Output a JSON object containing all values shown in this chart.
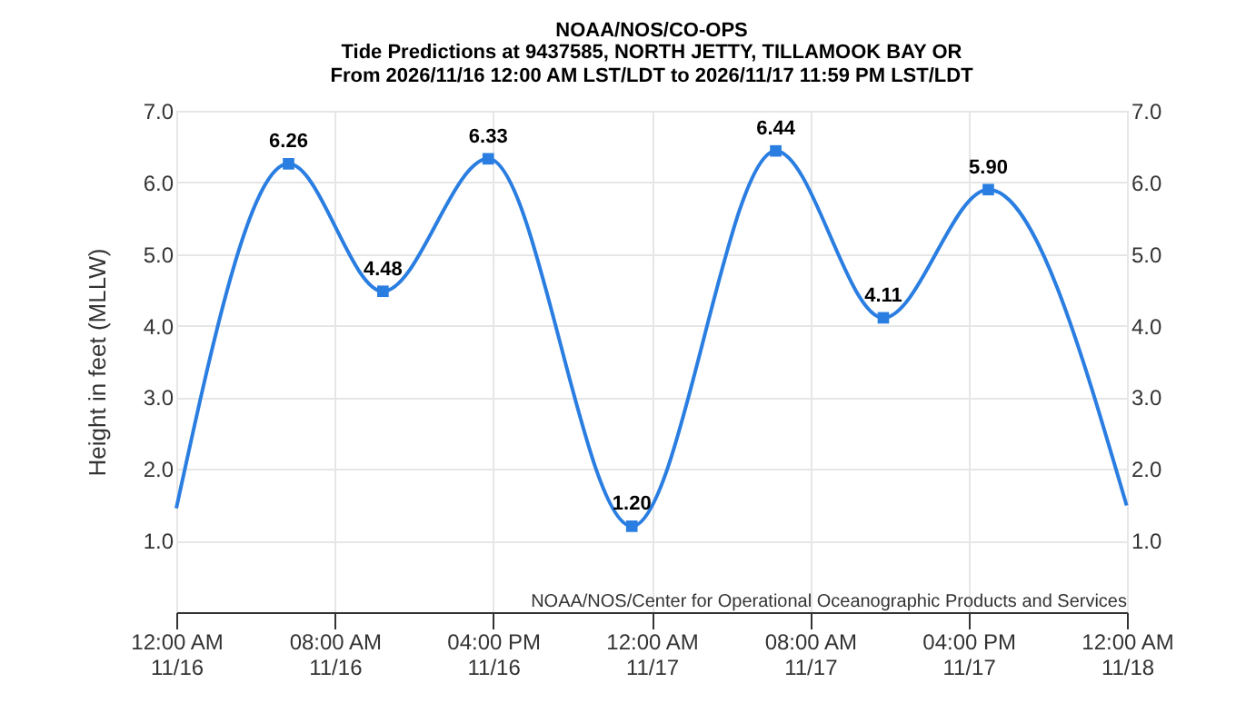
{
  "chart_data": {
    "type": "line",
    "title": "NOAA/NOS/CO-OPS",
    "subtitle": "Tide Predictions at 9437585, NORTH JETTY, TILLAMOOK BAY OR\nFrom 2026/11/16 12:00 AM LST/LDT to 2026/11/17 11:59 PM LST/LDT",
    "ylabel": "Height in feet (MLLW)",
    "series": [
      {
        "color": "#2a7de1",
        "line_style": "solid",
        "x": [
          "2026-11-16T00:00",
          "2026-11-16T05:40",
          "2026-11-16T10:26",
          "2026-11-16T15:45",
          "2026-11-16T23:00",
          "2026-11-17T06:16",
          "2026-11-17T11:42",
          "2026-11-17T17:00",
          "2026-11-17T23:59"
        ],
        "values": [
          1.45,
          6.26,
          4.48,
          6.33,
          1.2,
          6.44,
          4.11,
          5.9,
          1.49
        ]
      },
      {
        "type": "scatter",
        "marker": "square",
        "color": "#2a7de1",
        "x": [
          "2026-11-16T05:40",
          "2026-11-16T10:26",
          "2026-11-16T15:45",
          "2026-11-16T23:00",
          "2026-11-17T06:16",
          "2026-11-17T11:42",
          "2026-11-17T17:00"
        ],
        "values": [
          6.26,
          4.48,
          6.33,
          1.2,
          6.44,
          4.11,
          5.9
        ],
        "value_labels": [
          "6.26",
          "4.48",
          "6.33",
          "1.20",
          "6.44",
          "4.11",
          "5.90"
        ]
      }
    ],
    "xlim": [
      "2026-11-16T00:00",
      "2026-11-18T00:00"
    ],
    "xticks": [
      {
        "value": "2026-11-16T00:00",
        "label": "12:00 AM\n11/16"
      },
      {
        "value": "2026-11-16T08:00",
        "label": "08:00 AM\n11/16"
      },
      {
        "value": "2026-11-16T16:00",
        "label": "04:00 PM\n11/16"
      },
      {
        "value": "2026-11-17T00:00",
        "label": "12:00 AM\n11/17"
      },
      {
        "value": "2026-11-17T08:00",
        "label": "08:00 AM\n11/17"
      },
      {
        "value": "2026-11-17T16:00",
        "label": "04:00 PM\n11/17"
      },
      {
        "value": "2026-11-18T00:00",
        "label": "12:00 AM\n11/18"
      }
    ],
    "ylim": [
      0,
      7
    ],
    "yticks": [
      {
        "value": 1,
        "label": "1.0"
      },
      {
        "value": 2,
        "label": "2.0"
      },
      {
        "value": 3,
        "label": "3.0"
      },
      {
        "value": 4,
        "label": "4.0"
      },
      {
        "value": 5,
        "label": "5.0"
      },
      {
        "value": 6,
        "label": "6.0"
      },
      {
        "value": 7,
        "label": "7.0"
      }
    ],
    "y2lim": [
      0,
      7
    ],
    "y2ticks": [
      {
        "value": 1,
        "label": "1.0"
      },
      {
        "value": 2,
        "label": "2.0"
      },
      {
        "value": 3,
        "label": "3.0"
      },
      {
        "value": 4,
        "label": "4.0"
      },
      {
        "value": 5,
        "label": "5.0"
      },
      {
        "value": 6,
        "label": "6.0"
      },
      {
        "value": 7,
        "label": "7.0"
      }
    ],
    "grid": true,
    "annotations": [
      "NOAA/NOS/Center for Operational Oceanographic Products and Services"
    ]
  }
}
